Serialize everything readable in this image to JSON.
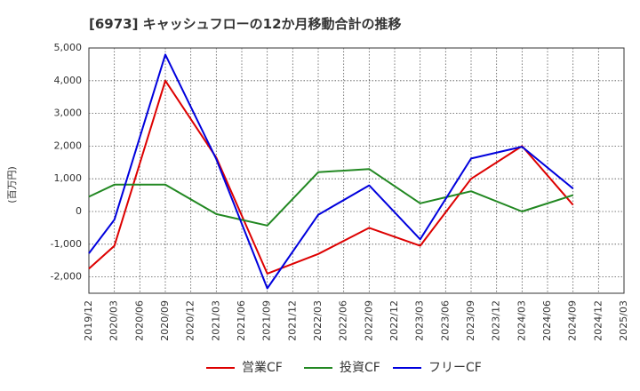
{
  "chart_data": {
    "type": "line",
    "title": "[6973]  キャッシュフローの12か月移動合計の推移",
    "ylabel": "(百万円)",
    "xlabel": "",
    "ylim": [
      -2500,
      5000
    ],
    "yticks": [
      -2000,
      -1000,
      0,
      1000,
      2000,
      3000,
      4000,
      5000
    ],
    "ytick_labels": [
      "-2,000",
      "-1,000",
      "0",
      "1,000",
      "2,000",
      "3,000",
      "4,000",
      "5,000"
    ],
    "xtick_labels": [
      "2019/12",
      "2020/03",
      "2020/06",
      "2020/09",
      "2020/12",
      "2021/03",
      "2021/06",
      "2021/09",
      "2021/12",
      "2022/03",
      "2022/06",
      "2022/09",
      "2022/12",
      "2023/03",
      "2023/06",
      "2023/09",
      "2023/12",
      "2024/03",
      "2024/06",
      "2024/09",
      "2024/12",
      "2025/03"
    ],
    "grid": true,
    "legend_position": "bottom",
    "series": [
      {
        "name": "営業CF",
        "color": "#dd0000",
        "points": [
          {
            "x": "2019/12",
            "y": -1750
          },
          {
            "x": "2020/03",
            "y": -1050
          },
          {
            "x": "2020/09",
            "y": 4000
          },
          {
            "x": "2021/03",
            "y": 1650
          },
          {
            "x": "2021/09",
            "y": -1900
          },
          {
            "x": "2022/03",
            "y": -1300
          },
          {
            "x": "2022/09",
            "y": -500
          },
          {
            "x": "2023/03",
            "y": -1050
          },
          {
            "x": "2023/09",
            "y": 1000
          },
          {
            "x": "2024/03",
            "y": 2000
          },
          {
            "x": "2024/09",
            "y": 200
          }
        ]
      },
      {
        "name": "投資CF",
        "color": "#228822",
        "points": [
          {
            "x": "2019/12",
            "y": 450
          },
          {
            "x": "2020/03",
            "y": 820
          },
          {
            "x": "2020/09",
            "y": 820
          },
          {
            "x": "2021/03",
            "y": -80
          },
          {
            "x": "2021/09",
            "y": -430
          },
          {
            "x": "2022/03",
            "y": 1200
          },
          {
            "x": "2022/09",
            "y": 1300
          },
          {
            "x": "2023/03",
            "y": 250
          },
          {
            "x": "2023/09",
            "y": 620
          },
          {
            "x": "2024/03",
            "y": 0
          },
          {
            "x": "2024/09",
            "y": 500
          }
        ]
      },
      {
        "name": "フリーCF",
        "color": "#0000dd",
        "points": [
          {
            "x": "2019/12",
            "y": -1280
          },
          {
            "x": "2020/03",
            "y": -250
          },
          {
            "x": "2020/09",
            "y": 4800
          },
          {
            "x": "2021/03",
            "y": 1600
          },
          {
            "x": "2021/09",
            "y": -2350
          },
          {
            "x": "2022/03",
            "y": -100
          },
          {
            "x": "2022/09",
            "y": 800
          },
          {
            "x": "2023/03",
            "y": -850
          },
          {
            "x": "2023/09",
            "y": 1620
          },
          {
            "x": "2024/03",
            "y": 1980
          },
          {
            "x": "2024/09",
            "y": 700
          }
        ]
      }
    ]
  }
}
